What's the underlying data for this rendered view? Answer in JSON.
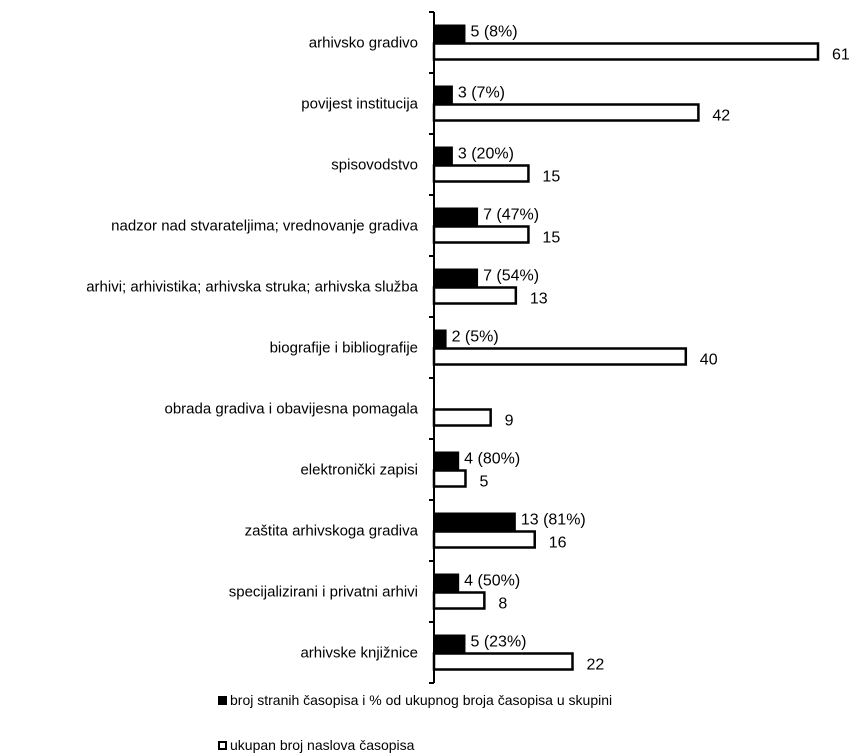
{
  "chart_data": {
    "type": "bar",
    "orientation": "horizontal",
    "categories": [
      "arhivsko gradivo",
      "povijest institucija",
      "spisovodstvo",
      "nadzor nad stvarateljima; vrednovanje gradiva",
      "arhivi; arhivistika; arhivska struka; arhivska služba",
      "biografije i bibliografije",
      "obrada gradiva i obavijesna pomagala",
      "elektronički zapisi",
      "zaštita arhivskoga gradiva",
      "specijalizirani i privatni arhivi",
      "arhivske knjižnice"
    ],
    "series": [
      {
        "name": "broj stranih časopisa i % od ukupnog broja časopisa u skupini",
        "color": "#000000",
        "values": [
          5,
          3,
          3,
          7,
          7,
          2,
          0,
          4,
          13,
          4,
          5
        ],
        "labels": [
          "5 (8%)",
          "3 (7%)",
          "3 (20%)",
          "7 (47%)",
          "7 (54%)",
          "2 (5%)",
          "",
          "4 (80%)",
          "13 (81%)",
          "4 (50%)",
          "5 (23%)"
        ]
      },
      {
        "name": "ukupan broj naslova časopisa",
        "color": "#ffffff",
        "values": [
          61,
          42,
          15,
          15,
          13,
          40,
          9,
          5,
          16,
          8,
          22
        ],
        "labels": [
          "61",
          "42",
          "15",
          "15",
          "13",
          "40",
          "9",
          "5",
          "16",
          "8",
          "22"
        ]
      }
    ],
    "xlim": [
      0,
      61
    ],
    "grid": false,
    "legend_position": "bottom"
  }
}
